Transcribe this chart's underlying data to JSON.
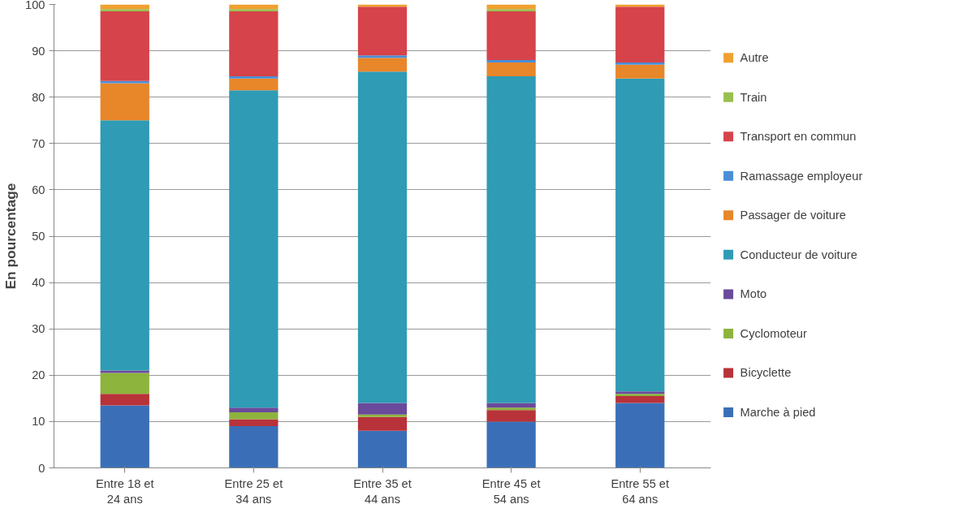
{
  "chart_data": {
    "type": "bar",
    "stacked": true,
    "ylabel": "En pourcentage",
    "categories": [
      "Entre 18 et 24 ans",
      "Entre 25 et 34 ans",
      "Entre 35 et 44 ans",
      "Entre 45 et 54 ans",
      "Entre 55 et 64 ans"
    ],
    "series": [
      {
        "name": "Marche à pied",
        "color": "#3a6fb8",
        "values": [
          13.5,
          9,
          8,
          10,
          14
        ]
      },
      {
        "name": "Bicyclette",
        "color": "#b8323a",
        "values": [
          2.5,
          1.5,
          3,
          2.5,
          1.5
        ]
      },
      {
        "name": "Cyclomoteur",
        "color": "#8db43c",
        "values": [
          4.5,
          1.5,
          0.5,
          0.5,
          0.5
        ]
      },
      {
        "name": "Moto",
        "color": "#6a4a9a",
        "values": [
          0.5,
          1,
          2.5,
          1,
          0.5
        ]
      },
      {
        "name": "Conducteur de voiture",
        "color": "#2f9bb5",
        "values": [
          54,
          68.5,
          71.5,
          70.5,
          67.5
        ]
      },
      {
        "name": "Passager de voiture",
        "color": "#e8862a",
        "values": [
          8,
          2.5,
          3,
          3,
          3
        ]
      },
      {
        "name": "Ramassage employeur",
        "color": "#4a8ed8",
        "values": [
          0.5,
          0.5,
          0.5,
          0.5,
          0.5
        ]
      },
      {
        "name": "Transport en commun",
        "color": "#d6434a",
        "values": [
          15,
          14,
          10.5,
          10.5,
          12
        ]
      },
      {
        "name": "Train",
        "color": "#98c050",
        "values": [
          0.5,
          0.5,
          0,
          0.5,
          0
        ]
      },
      {
        "name": "Autre",
        "color": "#f0a030",
        "values": [
          1,
          1,
          0.5,
          1,
          0.5
        ]
      }
    ],
    "ylim": [
      0,
      100
    ],
    "yticks": [
      0,
      10,
      20,
      30,
      40,
      50,
      60,
      70,
      80,
      90,
      100
    ],
    "grid": "y",
    "legend": "right"
  }
}
